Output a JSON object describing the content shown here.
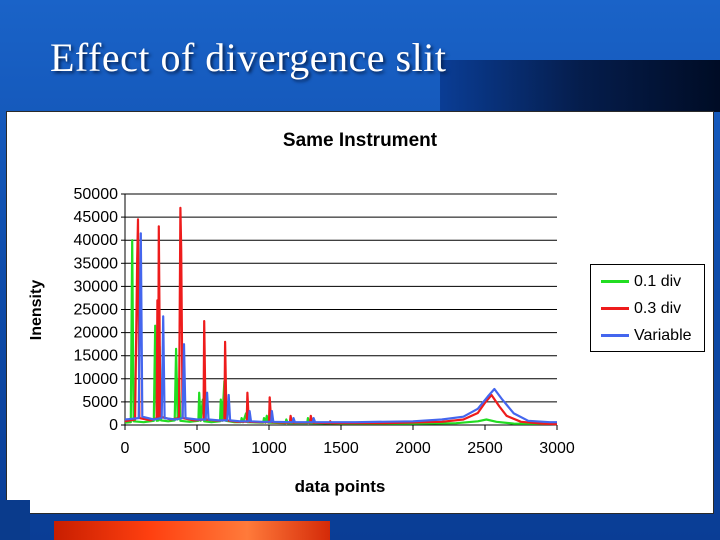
{
  "slide": {
    "title": "Effect of divergence slit"
  },
  "chart_data": {
    "type": "line",
    "title": "Same Instrument",
    "xlabel": "data points",
    "ylabel": "Inensity",
    "xlim": [
      0,
      3000
    ],
    "ylim": [
      0,
      50000
    ],
    "x_ticks": [
      "0",
      "500",
      "1000",
      "1500",
      "2000",
      "2500",
      "3000"
    ],
    "y_ticks": [
      "0",
      "5000",
      "10000",
      "15000",
      "20000",
      "25000",
      "30000",
      "35000",
      "40000",
      "45000",
      "50000"
    ],
    "grid": "horizontal",
    "legend_position": "right",
    "series": [
      {
        "name": "0.1 div",
        "color": "#22dd22",
        "peaks": [
          [
            50,
            40000
          ],
          [
            210,
            21500
          ],
          [
            240,
            17000
          ],
          [
            355,
            16500
          ],
          [
            375,
            10000
          ],
          [
            515,
            7000
          ],
          [
            540,
            5500
          ],
          [
            665,
            5500
          ],
          [
            690,
            9500
          ],
          [
            810,
            1500
          ],
          [
            840,
            2500
          ],
          [
            965,
            1500
          ],
          [
            985,
            2000
          ],
          [
            1120,
            1200
          ],
          [
            1270,
            1500
          ],
          [
            2510,
            1200
          ]
        ],
        "points": [
          [
            0,
            500
          ],
          [
            40,
            600
          ],
          [
            50,
            40000
          ],
          [
            60,
            800
          ],
          [
            130,
            600
          ],
          [
            200,
            900
          ],
          [
            210,
            21500
          ],
          [
            220,
            900
          ],
          [
            235,
            1000
          ],
          [
            240,
            17000
          ],
          [
            250,
            1000
          ],
          [
            300,
            800
          ],
          [
            345,
            1000
          ],
          [
            355,
            16500
          ],
          [
            365,
            1200
          ],
          [
            375,
            10000
          ],
          [
            385,
            900
          ],
          [
            450,
            700
          ],
          [
            510,
            900
          ],
          [
            515,
            7000
          ],
          [
            525,
            900
          ],
          [
            540,
            5500
          ],
          [
            550,
            800
          ],
          [
            600,
            600
          ],
          [
            660,
            800
          ],
          [
            665,
            5500
          ],
          [
            675,
            900
          ],
          [
            690,
            9500
          ],
          [
            700,
            900
          ],
          [
            760,
            600
          ],
          [
            805,
            600
          ],
          [
            810,
            1500
          ],
          [
            820,
            600
          ],
          [
            840,
            2500
          ],
          [
            850,
            600
          ],
          [
            960,
            500
          ],
          [
            965,
            1500
          ],
          [
            975,
            500
          ],
          [
            985,
            2000
          ],
          [
            995,
            500
          ],
          [
            1115,
            400
          ],
          [
            1120,
            1200
          ],
          [
            1130,
            400
          ],
          [
            1265,
            400
          ],
          [
            1270,
            1500
          ],
          [
            1280,
            400
          ],
          [
            1500,
            300
          ],
          [
            2000,
            300
          ],
          [
            2300,
            400
          ],
          [
            2450,
            800
          ],
          [
            2510,
            1200
          ],
          [
            2580,
            700
          ],
          [
            2700,
            300
          ],
          [
            2900,
            250
          ],
          [
            3000,
            250
          ]
        ]
      },
      {
        "name": "0.3 div",
        "color": "#ee1c1c",
        "peaks": [
          [
            90,
            44500
          ],
          [
            85,
            36000
          ],
          [
            235,
            43000
          ],
          [
            225,
            27000
          ],
          [
            385,
            47000
          ],
          [
            390,
            38000
          ],
          [
            550,
            22500
          ],
          [
            695,
            18000
          ],
          [
            850,
            7000
          ],
          [
            1005,
            6000
          ],
          [
            1150,
            2000
          ],
          [
            1290,
            2000
          ],
          [
            1425,
            800
          ],
          [
            2545,
            6500
          ]
        ],
        "points": [
          [
            0,
            800
          ],
          [
            70,
            1200
          ],
          [
            85,
            36000
          ],
          [
            90,
            44500
          ],
          [
            100,
            1500
          ],
          [
            180,
            1000
          ],
          [
            220,
            1500
          ],
          [
            225,
            27000
          ],
          [
            230,
            1800
          ],
          [
            235,
            43000
          ],
          [
            245,
            1800
          ],
          [
            320,
            1200
          ],
          [
            375,
            1500
          ],
          [
            385,
            47000
          ],
          [
            390,
            38000
          ],
          [
            400,
            1500
          ],
          [
            480,
            1000
          ],
          [
            545,
            1200
          ],
          [
            550,
            22500
          ],
          [
            560,
            1200
          ],
          [
            640,
            900
          ],
          [
            690,
            1000
          ],
          [
            695,
            18000
          ],
          [
            705,
            1000
          ],
          [
            780,
            700
          ],
          [
            845,
            700
          ],
          [
            850,
            7000
          ],
          [
            860,
            700
          ],
          [
            940,
            600
          ],
          [
            1000,
            600
          ],
          [
            1005,
            6000
          ],
          [
            1015,
            600
          ],
          [
            1100,
            500
          ],
          [
            1145,
            500
          ],
          [
            1150,
            2000
          ],
          [
            1160,
            500
          ],
          [
            1285,
            500
          ],
          [
            1290,
            2000
          ],
          [
            1300,
            500
          ],
          [
            1420,
            400
          ],
          [
            1425,
            800
          ],
          [
            1435,
            400
          ],
          [
            1800,
            400
          ],
          [
            2200,
            700
          ],
          [
            2350,
            1200
          ],
          [
            2450,
            2600
          ],
          [
            2500,
            4800
          ],
          [
            2545,
            6500
          ],
          [
            2600,
            4000
          ],
          [
            2650,
            2000
          ],
          [
            2750,
            700
          ],
          [
            2900,
            300
          ],
          [
            3000,
            200
          ]
        ]
      },
      {
        "name": "Variable",
        "color": "#4466ee",
        "peaks": [
          [
            110,
            41500
          ],
          [
            265,
            23500
          ],
          [
            410,
            17500
          ],
          [
            570,
            7000
          ],
          [
            720,
            6500
          ],
          [
            865,
            3000
          ],
          [
            1020,
            3000
          ],
          [
            1170,
            1500
          ],
          [
            1310,
            1500
          ],
          [
            2565,
            7800
          ]
        ],
        "points": [
          [
            0,
            1200
          ],
          [
            95,
            1500
          ],
          [
            110,
            41500
          ],
          [
            120,
            1800
          ],
          [
            200,
            1200
          ],
          [
            255,
            1500
          ],
          [
            265,
            23500
          ],
          [
            275,
            1500
          ],
          [
            350,
            1200
          ],
          [
            400,
            1500
          ],
          [
            410,
            17500
          ],
          [
            420,
            1500
          ],
          [
            500,
            1200
          ],
          [
            560,
            1200
          ],
          [
            570,
            7000
          ],
          [
            580,
            1200
          ],
          [
            650,
            1000
          ],
          [
            710,
            1000
          ],
          [
            720,
            6500
          ],
          [
            730,
            1000
          ],
          [
            800,
            800
          ],
          [
            860,
            800
          ],
          [
            865,
            3000
          ],
          [
            875,
            800
          ],
          [
            950,
            700
          ],
          [
            1015,
            700
          ],
          [
            1020,
            3000
          ],
          [
            1030,
            700
          ],
          [
            1165,
            600
          ],
          [
            1170,
            1500
          ],
          [
            1180,
            600
          ],
          [
            1305,
            600
          ],
          [
            1310,
            1500
          ],
          [
            1320,
            600
          ],
          [
            1600,
            600
          ],
          [
            2000,
            800
          ],
          [
            2200,
            1200
          ],
          [
            2350,
            1800
          ],
          [
            2450,
            3500
          ],
          [
            2520,
            6200
          ],
          [
            2565,
            7800
          ],
          [
            2620,
            5500
          ],
          [
            2700,
            2500
          ],
          [
            2800,
            900
          ],
          [
            2950,
            600
          ],
          [
            3000,
            600
          ]
        ]
      }
    ]
  }
}
